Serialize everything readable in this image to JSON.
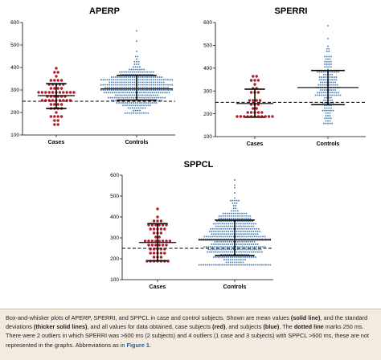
{
  "chart_data": [
    {
      "type": "scatter",
      "title": "APERP",
      "ylim": [
        100,
        600
      ],
      "yticks": [
        100,
        200,
        300,
        400,
        500,
        600
      ],
      "reference_line": 250,
      "categories": [
        "Cases",
        "Controls"
      ],
      "series": [
        {
          "name": "Cases",
          "color": "#b01e2a",
          "mean": 275,
          "sd_low": 218,
          "sd_high": 328,
          "min": 150,
          "max": 400,
          "n": 60
        },
        {
          "name": "Controls",
          "color": "#4a7fb5",
          "mean": 305,
          "sd_low": 255,
          "sd_high": 365,
          "min": 195,
          "max": 565,
          "n": 420
        }
      ]
    },
    {
      "type": "scatter",
      "title": "SPERRI",
      "ylim": [
        100,
        600
      ],
      "yticks": [
        100,
        200,
        300,
        400,
        500,
        600
      ],
      "reference_line": 250,
      "categories": [
        "Cases",
        "Controls"
      ],
      "series": [
        {
          "name": "Cases",
          "color": "#b01e2a",
          "mean": 245,
          "sd_low": 185,
          "sd_high": 308,
          "min": 180,
          "max": 370,
          "n": 40
        },
        {
          "name": "Controls",
          "color": "#4a7fb5",
          "mean": 315,
          "sd_low": 240,
          "sd_high": 390,
          "min": 155,
          "max": 585,
          "n": 170
        }
      ]
    },
    {
      "type": "scatter",
      "title": "SPPCL",
      "ylim": [
        100,
        600
      ],
      "yticks": [
        100,
        200,
        300,
        400,
        500,
        600
      ],
      "reference_line": 250,
      "categories": [
        "Cases",
        "Controls"
      ],
      "series": [
        {
          "name": "Cases",
          "color": "#b01e2a",
          "mean": 278,
          "sd_low": 190,
          "sd_high": 368,
          "min": 190,
          "max": 440,
          "n": 55
        },
        {
          "name": "Controls",
          "color": "#4a7fb5",
          "mean": 290,
          "sd_low": 215,
          "sd_high": 385,
          "min": 170,
          "max": 578,
          "n": 480
        }
      ]
    }
  ],
  "caption": {
    "s1": "Box-and-whisker plots of APERP, SPERRI, and SPPCL in case and control subjects. Shown are mean values ",
    "s2": "(solid line)",
    "s3": ", and the standard deviations ",
    "s4": "(thicker solid lines)",
    "s5": ", and all values for data obtained, case subjects ",
    "s6": "(red)",
    "s7": ", and subjects ",
    "s8": "(blue)",
    "s9": ". The ",
    "s10": "dotted line",
    "s11": " marks 250 ms. There were 2 outliers in which SPERRI was >600 ms (2 subjects) and 4 outliers (1 case and 3 subjects) with SPPCL >600 ms, these are not represented in the graphs. Abbreviations as in ",
    "s12": "Figure 1",
    "s13": "."
  }
}
